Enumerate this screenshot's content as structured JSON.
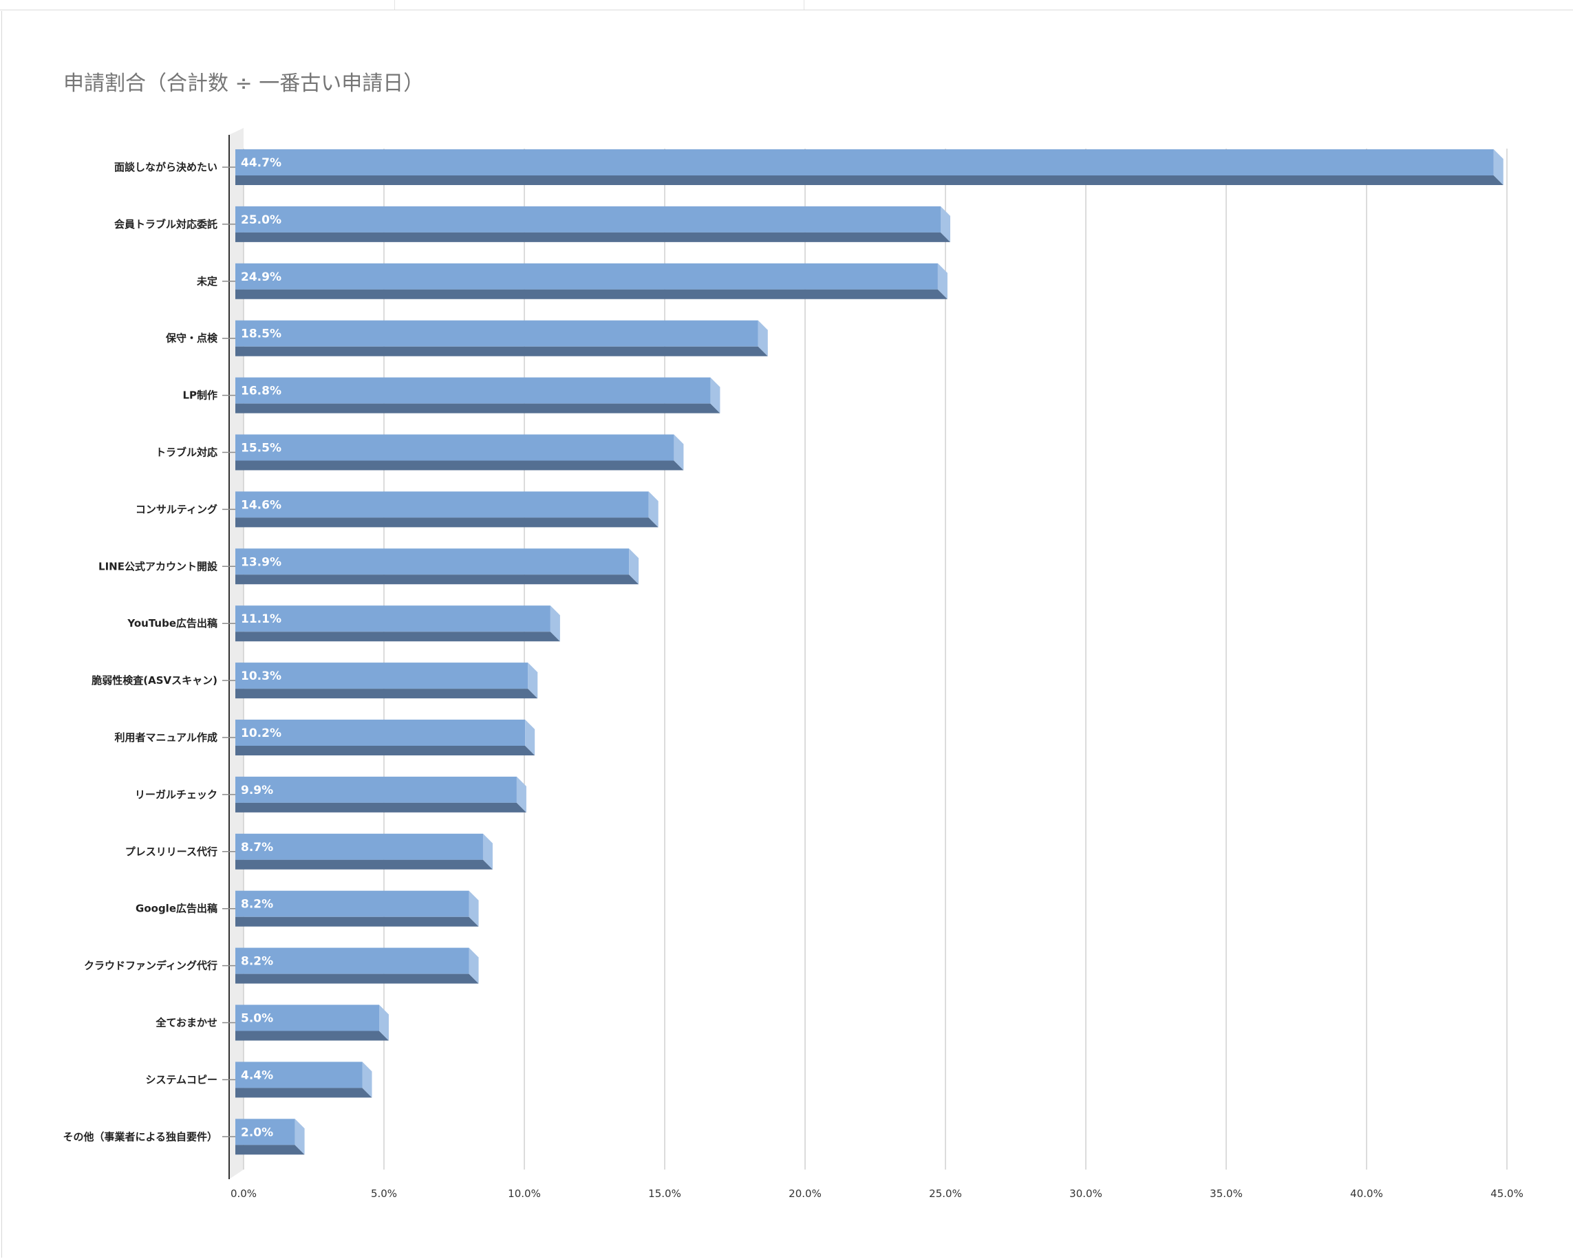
{
  "chart_data": {
    "type": "bar",
    "orientation": "horizontal",
    "style": "3d",
    "title": "申請割合（合計数 ÷ 一番古い申請日）",
    "xlim": [
      0,
      45
    ],
    "x_ticks": [
      "0.0%",
      "5.0%",
      "10.0%",
      "15.0%",
      "20.0%",
      "25.0%",
      "30.0%",
      "35.0%",
      "40.0%",
      "45.0%"
    ],
    "grid": "vertical",
    "legend": "none",
    "colors": {
      "bar_front": "#7ea7d8",
      "bar_bottom": "#546f92",
      "bar_side": "#a6c3e6",
      "label_text": "#ffffff"
    },
    "categories": [
      "面談しながら決めたい",
      "会員トラブル対応委託",
      "未定",
      "保守・点検",
      "LP制作",
      "トラブル対応",
      "コンサルティング",
      "LINE公式アカウント開設",
      "YouTube広告出稿",
      "脆弱性検査(ASVスキャン)",
      "利用者マニュアル作成",
      "リーガルチェック",
      "プレスリリース代行",
      "Google広告出稿",
      "クラウドファンディング代行",
      "全ておまかせ",
      "システムコピー",
      "その他（事業者による独自要件）"
    ],
    "values": [
      44.7,
      25.0,
      24.9,
      18.5,
      16.8,
      15.5,
      14.6,
      13.9,
      11.1,
      10.3,
      10.2,
      9.9,
      8.7,
      8.2,
      8.2,
      5.0,
      4.4,
      2.0
    ],
    "data_labels": [
      "44.7%",
      "25.0%",
      "24.9%",
      "18.5%",
      "16.8%",
      "15.5%",
      "14.6%",
      "13.9%",
      "11.1%",
      "10.3%",
      "10.2%",
      "9.9%",
      "8.7%",
      "8.2%",
      "8.2%",
      "5.0%",
      "4.4%",
      "2.0%"
    ]
  }
}
